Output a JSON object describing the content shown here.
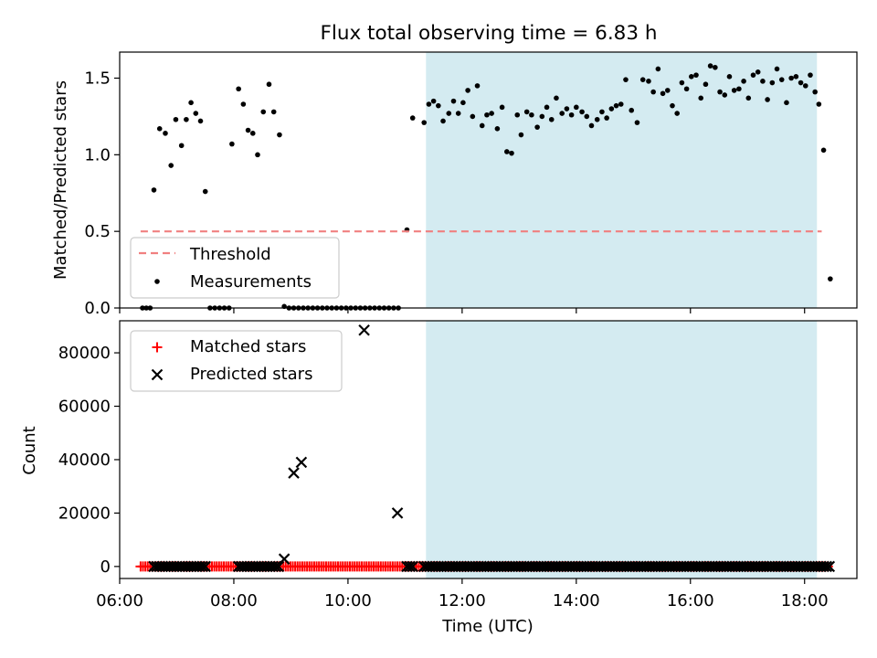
{
  "chart_data": {
    "title": "Flux total observing time = 6.83 h",
    "xlabel": "Time (UTC)",
    "x_axis": {
      "unit": "hours UTC",
      "range": [
        "06:00",
        "18:55"
      ],
      "ticks": [
        {
          "hour": 6,
          "label": "06:00"
        },
        {
          "hour": 8,
          "label": "08:00"
        },
        {
          "hour": 10,
          "label": "10:00"
        },
        {
          "hour": 12,
          "label": "12:00"
        },
        {
          "hour": 14,
          "label": "14:00"
        },
        {
          "hour": 16,
          "label": "16:00"
        },
        {
          "hour": 18,
          "label": "18:00"
        }
      ]
    },
    "observing_window": {
      "start": "11:22",
      "end": "18:13",
      "color": "#d4ebf1"
    },
    "colors": {
      "threshold": "#f08080",
      "measurements": "#000000",
      "matched": "#ff0000",
      "predicted": "#000000",
      "window": "#d4ebf1"
    },
    "panels": [
      {
        "type": "scatter",
        "ylabel": "Matched/Predicted stars",
        "ylim": [
          0,
          1.67
        ],
        "yticks": [
          {
            "value": 0,
            "label": "0.0"
          },
          {
            "value": 0.5,
            "label": "0.5"
          },
          {
            "value": 1.0,
            "label": "1.0"
          },
          {
            "value": 1.5,
            "label": "1.5"
          }
        ],
        "legend": {
          "position": "lower-left",
          "entries": [
            "Threshold",
            "Measurements"
          ]
        },
        "threshold": {
          "name": "Threshold",
          "value": 0.5,
          "x_range": [
            "06:22",
            "18:18"
          ],
          "style": "dashed"
        },
        "measurements": {
          "name": "Measurements",
          "points": [
            [
              "06:24",
              0.0
            ],
            [
              "06:28",
              0.0
            ],
            [
              "06:32",
              0.0
            ],
            [
              "06:36",
              0.77
            ],
            [
              "06:42",
              1.17
            ],
            [
              "06:48",
              1.14
            ],
            [
              "06:54",
              0.93
            ],
            [
              "06:59",
              1.23
            ],
            [
              "07:05",
              1.06
            ],
            [
              "07:10",
              1.23
            ],
            [
              "07:15",
              1.34
            ],
            [
              "07:20",
              1.27
            ],
            [
              "07:25",
              1.22
            ],
            [
              "07:30",
              0.76
            ],
            [
              "07:35",
              0.0
            ],
            [
              "07:40",
              0.0
            ],
            [
              "07:45",
              0.0
            ],
            [
              "07:50",
              0.0
            ],
            [
              "07:55",
              0.0
            ],
            [
              "07:58",
              1.07
            ],
            [
              "08:05",
              1.43
            ],
            [
              "08:10",
              1.33
            ],
            [
              "08:15",
              1.16
            ],
            [
              "08:20",
              1.14
            ],
            [
              "08:25",
              1.0
            ],
            [
              "08:31",
              1.28
            ],
            [
              "08:37",
              1.46
            ],
            [
              "08:42",
              1.28
            ],
            [
              "08:48",
              1.13
            ],
            [
              "08:53",
              0.01
            ],
            [
              "08:58",
              0.0
            ],
            [
              "09:03",
              0.0
            ],
            [
              "09:08",
              0.0
            ],
            [
              "09:13",
              0.0
            ],
            [
              "09:18",
              0.0
            ],
            [
              "09:23",
              0.0
            ],
            [
              "09:28",
              0.0
            ],
            [
              "09:33",
              0.0
            ],
            [
              "09:38",
              0.0
            ],
            [
              "09:43",
              0.0
            ],
            [
              "09:48",
              0.0
            ],
            [
              "09:53",
              0.0
            ],
            [
              "09:58",
              0.0
            ],
            [
              "10:03",
              0.0
            ],
            [
              "10:08",
              0.0
            ],
            [
              "10:13",
              0.0
            ],
            [
              "10:18",
              0.0
            ],
            [
              "10:23",
              0.0
            ],
            [
              "10:28",
              0.0
            ],
            [
              "10:33",
              0.0
            ],
            [
              "10:38",
              0.0
            ],
            [
              "10:43",
              0.0
            ],
            [
              "10:48",
              0.0
            ],
            [
              "10:53",
              0.0
            ],
            [
              "11:02",
              0.51
            ],
            [
              "11:08",
              1.24
            ],
            [
              "11:20",
              1.21
            ],
            [
              "11:25",
              1.33
            ],
            [
              "11:30",
              1.35
            ],
            [
              "11:35",
              1.32
            ],
            [
              "11:40",
              1.22
            ],
            [
              "11:46",
              1.27
            ],
            [
              "11:51",
              1.35
            ],
            [
              "11:56",
              1.27
            ],
            [
              "12:01",
              1.34
            ],
            [
              "12:06",
              1.42
            ],
            [
              "12:11",
              1.25
            ],
            [
              "12:16",
              1.45
            ],
            [
              "12:21",
              1.19
            ],
            [
              "12:26",
              1.26
            ],
            [
              "12:31",
              1.27
            ],
            [
              "12:37",
              1.17
            ],
            [
              "12:42",
              1.31
            ],
            [
              "12:47",
              1.02
            ],
            [
              "12:52",
              1.01
            ],
            [
              "12:58",
              1.26
            ],
            [
              "13:02",
              1.13
            ],
            [
              "13:08",
              1.28
            ],
            [
              "13:13",
              1.26
            ],
            [
              "13:19",
              1.18
            ],
            [
              "13:24",
              1.25
            ],
            [
              "13:29",
              1.31
            ],
            [
              "13:34",
              1.23
            ],
            [
              "13:39",
              1.37
            ],
            [
              "13:45",
              1.27
            ],
            [
              "13:50",
              1.3
            ],
            [
              "13:55",
              1.26
            ],
            [
              "14:00",
              1.31
            ],
            [
              "14:06",
              1.28
            ],
            [
              "14:11",
              1.25
            ],
            [
              "14:16",
              1.19
            ],
            [
              "14:22",
              1.23
            ],
            [
              "14:27",
              1.28
            ],
            [
              "14:32",
              1.24
            ],
            [
              "14:37",
              1.3
            ],
            [
              "14:42",
              1.32
            ],
            [
              "14:47",
              1.33
            ],
            [
              "14:52",
              1.49
            ],
            [
              "14:58",
              1.29
            ],
            [
              "15:04",
              1.21
            ],
            [
              "15:10",
              1.49
            ],
            [
              "15:16",
              1.48
            ],
            [
              "15:21",
              1.41
            ],
            [
              "15:26",
              1.56
            ],
            [
              "15:31",
              1.4
            ],
            [
              "15:36",
              1.42
            ],
            [
              "15:41",
              1.32
            ],
            [
              "15:46",
              1.27
            ],
            [
              "15:51",
              1.47
            ],
            [
              "15:56",
              1.43
            ],
            [
              "16:01",
              1.51
            ],
            [
              "16:06",
              1.52
            ],
            [
              "16:11",
              1.37
            ],
            [
              "16:16",
              1.46
            ],
            [
              "16:21",
              1.58
            ],
            [
              "16:26",
              1.57
            ],
            [
              "16:31",
              1.41
            ],
            [
              "16:36",
              1.39
            ],
            [
              "16:41",
              1.51
            ],
            [
              "16:46",
              1.42
            ],
            [
              "16:51",
              1.43
            ],
            [
              "16:56",
              1.48
            ],
            [
              "17:01",
              1.37
            ],
            [
              "17:06",
              1.52
            ],
            [
              "17:11",
              1.54
            ],
            [
              "17:16",
              1.48
            ],
            [
              "17:21",
              1.36
            ],
            [
              "17:26",
              1.47
            ],
            [
              "17:31",
              1.56
            ],
            [
              "17:36",
              1.49
            ],
            [
              "17:41",
              1.34
            ],
            [
              "17:46",
              1.5
            ],
            [
              "17:51",
              1.51
            ],
            [
              "17:56",
              1.47
            ],
            [
              "18:01",
              1.45
            ],
            [
              "18:06",
              1.52
            ],
            [
              "18:11",
              1.41
            ],
            [
              "18:15",
              1.33
            ],
            [
              "18:20",
              1.03
            ],
            [
              "18:27",
              0.19
            ]
          ]
        }
      },
      {
        "type": "scatter",
        "ylabel": "Count",
        "ylim": [
          -4500,
          92000
        ],
        "yticks": [
          {
            "value": 0,
            "label": "0"
          },
          {
            "value": 20000,
            "label": "20000"
          },
          {
            "value": 40000,
            "label": "40000"
          },
          {
            "value": 60000,
            "label": "60000"
          },
          {
            "value": 80000,
            "label": "80000"
          }
        ],
        "legend": {
          "position": "top-left",
          "entries": [
            "Matched stars",
            "Predicted stars"
          ]
        },
        "matched": {
          "name": "Matched stars",
          "marker": "+",
          "value": 0,
          "x_range": [
            "06:22",
            "18:26"
          ],
          "step_minutes": 2.5
        },
        "predicted": {
          "name": "Predicted stars",
          "marker": "x",
          "baseline": {
            "value": 0,
            "segments": [
              [
                "06:36",
                "07:32"
              ],
              [
                "08:05",
                "08:48"
              ],
              [
                "11:02",
                "11:08"
              ],
              [
                "11:20",
                "18:26"
              ]
            ],
            "step_minutes": 3
          },
          "points": [
            [
              "08:53",
              2800
            ],
            [
              "09:03",
              35000
            ],
            [
              "09:11",
              39000
            ],
            [
              "10:17",
              88500
            ],
            [
              "10:52",
              20000
            ]
          ]
        }
      }
    ]
  }
}
